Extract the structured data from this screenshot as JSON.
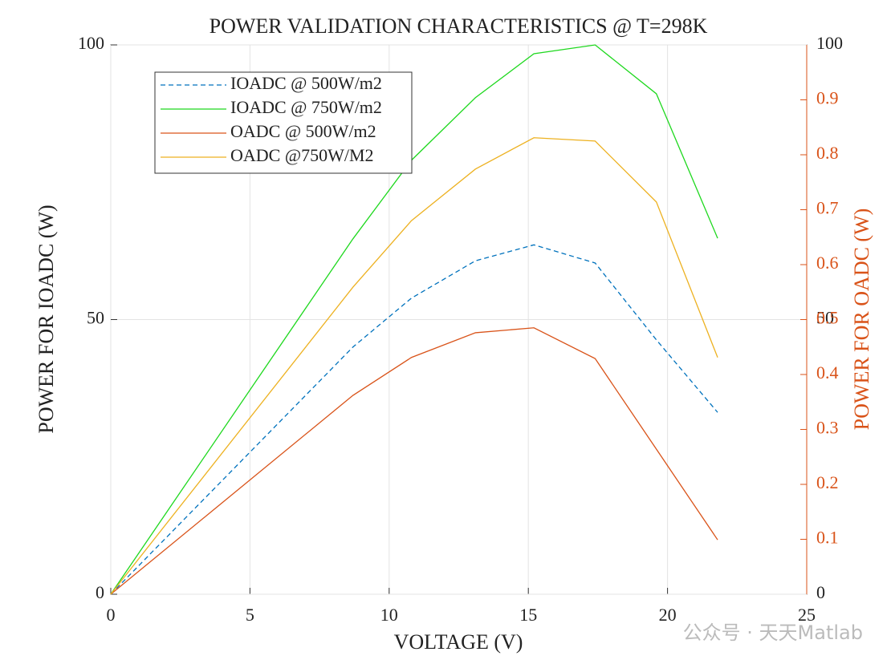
{
  "chart_data": {
    "type": "line",
    "title": "POWER VALIDATION CHARACTERISTICS @ T=298K",
    "xlabel": "VOLTAGE (V)",
    "ylabel": "POWER FOR IOADC (W)",
    "y2label": "POWER FOR OADC (W)",
    "x": [
      0,
      8.7,
      10.8,
      13.1,
      15.2,
      17.4,
      19.6,
      21.8
    ],
    "xlim": [
      0,
      25
    ],
    "xticks": [
      0,
      5,
      10,
      15,
      20,
      25
    ],
    "ylim": [
      0,
      100
    ],
    "yticks": [
      0,
      50,
      100
    ],
    "y2lim": [
      0,
      1
    ],
    "y2ticks": [
      0.1,
      0.2,
      0.3,
      0.4,
      0.5,
      0.6,
      0.7,
      0.8,
      0.9
    ],
    "y2color": "#D95319",
    "grid": true,
    "legend": "upper left",
    "series": [
      {
        "name": "IOADC @ 500W/m2",
        "color": "#0072BD",
        "dashed": true,
        "values": [
          0,
          45,
          53.9,
          60.7,
          63.6,
          60.3,
          46.3,
          33.1
        ]
      },
      {
        "name": "IOADC @ 750W/m2",
        "color": "#1ed81e",
        "values": [
          0,
          64.7,
          79,
          90.4,
          98.4,
          100,
          91.1,
          64.8
        ]
      },
      {
        "name": "OADC @ 500W/m2",
        "color": "#D95319",
        "axis": "y2",
        "values": [
          0,
          0.362,
          0.431,
          0.476,
          0.485,
          0.429,
          0.264,
          0.099
        ]
      },
      {
        "name": "OADC @750W/M2",
        "color": "#EDB120",
        "axis": "y2",
        "values": [
          0,
          0.559,
          0.68,
          0.774,
          0.831,
          0.825,
          0.714,
          0.431
        ]
      }
    ],
    "watermark": "公众号 · 天天Matlab"
  }
}
